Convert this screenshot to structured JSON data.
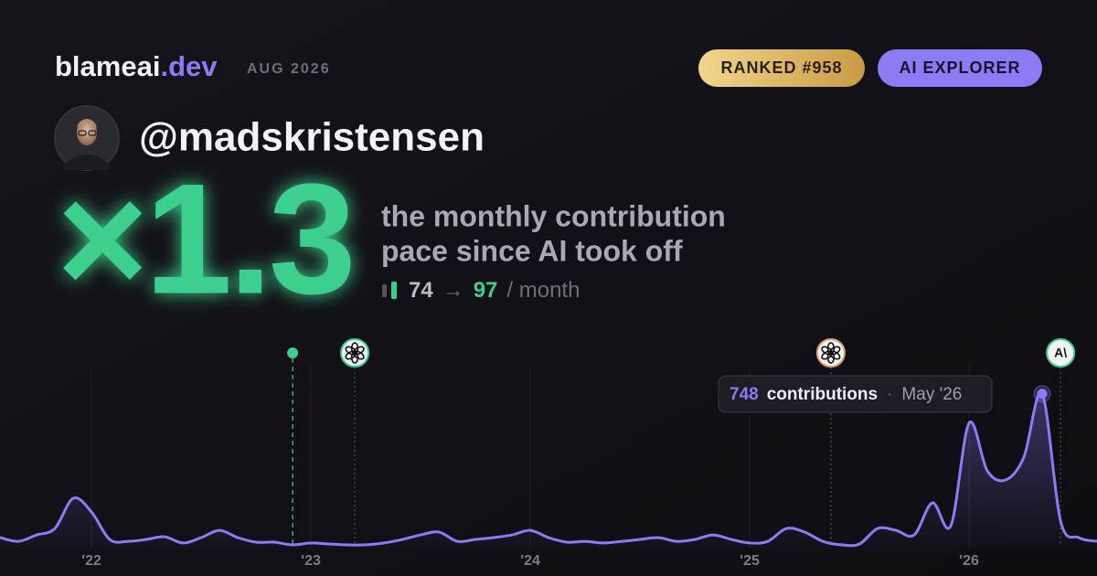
{
  "header": {
    "brand": "blameai",
    "brand_suffix": ".dev",
    "date": "AUG 2026",
    "rank_badge": "RANKED #958",
    "tier_badge": "AI EXPLORER"
  },
  "profile": {
    "handle": "@madskristensen"
  },
  "stat": {
    "multiplier": "×1.3",
    "description_lines": [
      "the monthly contribution",
      "pace since AI took off"
    ],
    "before": 74,
    "arrow": "→",
    "after": 97,
    "unit": "/ month"
  },
  "chart_data": {
    "type": "line",
    "color": "#8b7cf6",
    "x": [
      2021.583,
      2021.667,
      2021.75,
      2021.833,
      2021.917,
      2022.0,
      2022.083,
      2022.167,
      2022.25,
      2022.333,
      2022.417,
      2022.5,
      2022.583,
      2022.667,
      2022.75,
      2022.833,
      2022.917,
      2023.0,
      2023.083,
      2023.167,
      2023.25,
      2023.333,
      2023.417,
      2023.5,
      2023.583,
      2023.667,
      2023.75,
      2023.833,
      2023.917,
      2024.0,
      2024.083,
      2024.167,
      2024.25,
      2024.333,
      2024.417,
      2024.5,
      2024.583,
      2024.667,
      2024.75,
      2024.833,
      2024.917,
      2025.0,
      2025.083,
      2025.167,
      2025.25,
      2025.333,
      2025.417,
      2025.5,
      2025.583,
      2025.667,
      2025.75,
      2025.833,
      2025.917,
      2026.0,
      2026.083,
      2026.167,
      2026.25,
      2026.333,
      2026.417,
      2026.5,
      2026.583
    ],
    "values": [
      53,
      35,
      66,
      97,
      243,
      177,
      44,
      35,
      44,
      57,
      27,
      53,
      88,
      53,
      31,
      31,
      18,
      27,
      22,
      18,
      18,
      27,
      44,
      66,
      80,
      35,
      44,
      53,
      66,
      88,
      53,
      31,
      35,
      27,
      35,
      44,
      53,
      35,
      44,
      66,
      44,
      27,
      35,
      97,
      80,
      35,
      18,
      22,
      97,
      88,
      66,
      221,
      111,
      607,
      376,
      332,
      443,
      748,
      133,
      53,
      35
    ],
    "xlim": [
      2021.583,
      2026.583
    ],
    "ylim": [
      0,
      800
    ],
    "xticks": [
      {
        "value": 2022,
        "label": "'22"
      },
      {
        "value": 2023,
        "label": "'23"
      },
      {
        "value": 2024,
        "label": "'24"
      },
      {
        "value": 2025,
        "label": "'25"
      },
      {
        "value": 2026,
        "label": "'26"
      }
    ],
    "grid": true,
    "tooltip": {
      "label": "contributions",
      "date": "May '26"
    },
    "events": [
      {
        "x": 2022.917,
        "color": "#3ecf8e",
        "icon": "dot"
      },
      {
        "x": 2023.2,
        "color": "#3ecf8e",
        "icon": "openai"
      },
      {
        "x": 2025.37,
        "color": "#e0a060",
        "icon": "openai"
      },
      {
        "x": 2026.417,
        "color": "#3ecf8e",
        "icon": "anthropic",
        "label": "A\\"
      }
    ]
  }
}
